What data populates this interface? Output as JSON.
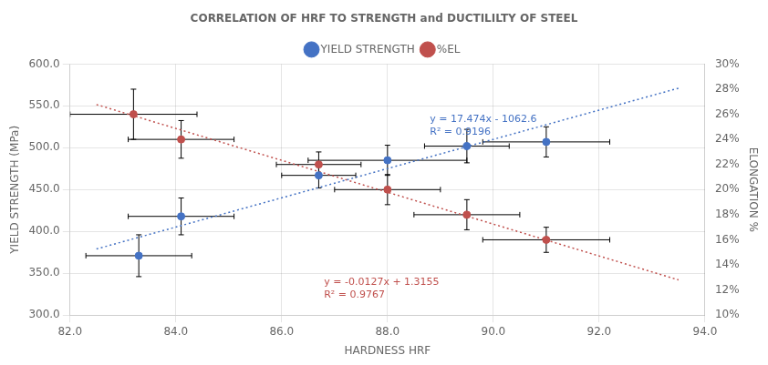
{
  "chart_data": {
    "type": "scatter",
    "title": "CORRELATION OF HRF TO STRENGTH and DUCTILILTY OF STEEL",
    "xlabel": "HARDNESS HRF",
    "ylabel": "YIELD STRENGTH (MPa)",
    "y2label": "ELONGATION %",
    "xlim": [
      82.0,
      94.0
    ],
    "xticks": [
      {
        "value": 82.0,
        "label": "82.0"
      },
      {
        "value": 84.0,
        "label": "84.0"
      },
      {
        "value": 86.0,
        "label": "86.0"
      },
      {
        "value": 88.0,
        "label": "88.0"
      },
      {
        "value": 90.0,
        "label": "90.0"
      },
      {
        "value": 92.0,
        "label": "92.0"
      },
      {
        "value": 94.0,
        "label": "94.0"
      }
    ],
    "ylim": [
      300.0,
      600.0
    ],
    "yticks": [
      {
        "value": 300.0,
        "label": "300.0"
      },
      {
        "value": 350.0,
        "label": "350.0"
      },
      {
        "value": 400.0,
        "label": "400.0"
      },
      {
        "value": 450.0,
        "label": "450.0"
      },
      {
        "value": 500.0,
        "label": "500.0"
      },
      {
        "value": 550.0,
        "label": "550.0"
      },
      {
        "value": 600.0,
        "label": "600.0"
      }
    ],
    "y2lim": [
      0.1,
      0.3
    ],
    "y2ticks": [
      {
        "value": 0.1,
        "label": "10%"
      },
      {
        "value": 0.12,
        "label": "12%"
      },
      {
        "value": 0.14,
        "label": "14%"
      },
      {
        "value": 0.16,
        "label": "16%"
      },
      {
        "value": 0.18,
        "label": "18%"
      },
      {
        "value": 0.2,
        "label": "20%"
      },
      {
        "value": 0.22,
        "label": "22%"
      },
      {
        "value": 0.24,
        "label": "24%"
      },
      {
        "value": 0.26,
        "label": "26%"
      },
      {
        "value": 0.28,
        "label": "28%"
      },
      {
        "value": 0.3,
        "label": "30%"
      }
    ],
    "grid": true,
    "legend": "top",
    "series": [
      {
        "name": "YIELD STRENGTH",
        "type": "scatter",
        "color": "#4472C4",
        "marker": "circle",
        "x": [
          83.3,
          84.1,
          86.7,
          88.0,
          89.5,
          91.0
        ],
        "values": [
          371.0,
          418.0,
          467.0,
          485.0,
          502.0,
          507.0
        ],
        "xerr": [
          1.0,
          1.0,
          0.7,
          1.5,
          0.8,
          1.2
        ],
        "yerr": [
          25.0,
          22.0,
          15.0,
          18.0,
          20.0,
          18.0
        ]
      },
      {
        "name": "%EL",
        "type": "scatter",
        "color": "#C0504D",
        "marker": "circle",
        "axis": "y2",
        "x": [
          83.2,
          84.1,
          86.7,
          88.0,
          89.5,
          91.0
        ],
        "values": [
          0.26,
          0.24,
          0.22,
          0.2,
          0.18,
          0.16
        ],
        "xerr": [
          1.2,
          1.0,
          0.8,
          1.0,
          1.0,
          1.2
        ],
        "yerr": [
          0.02,
          0.015,
          0.01,
          0.012,
          0.012,
          0.01
        ]
      },
      {
        "type": "line",
        "color": "#4472C4",
        "line_style": "dotted",
        "x": [
          82.5,
          93.5
        ],
        "values": [
          379.005,
          571.219
        ]
      },
      {
        "type": "line",
        "color": "#C0504D",
        "line_style": "dotted",
        "axis": "y2",
        "x": [
          82.5,
          93.5
        ],
        "values": [
          0.26775,
          0.12805
        ]
      }
    ],
    "annotations": [
      {
        "text": "y = 17.474x - 1062.6\nR² = 0.9196",
        "x": 88.8,
        "y": 540,
        "color": "#4472C4"
      },
      {
        "text": "y = -0.0127x + 1.3155\nR² = 0.9767",
        "x": 86.8,
        "y": 345,
        "color": "#C0504D"
      }
    ]
  }
}
